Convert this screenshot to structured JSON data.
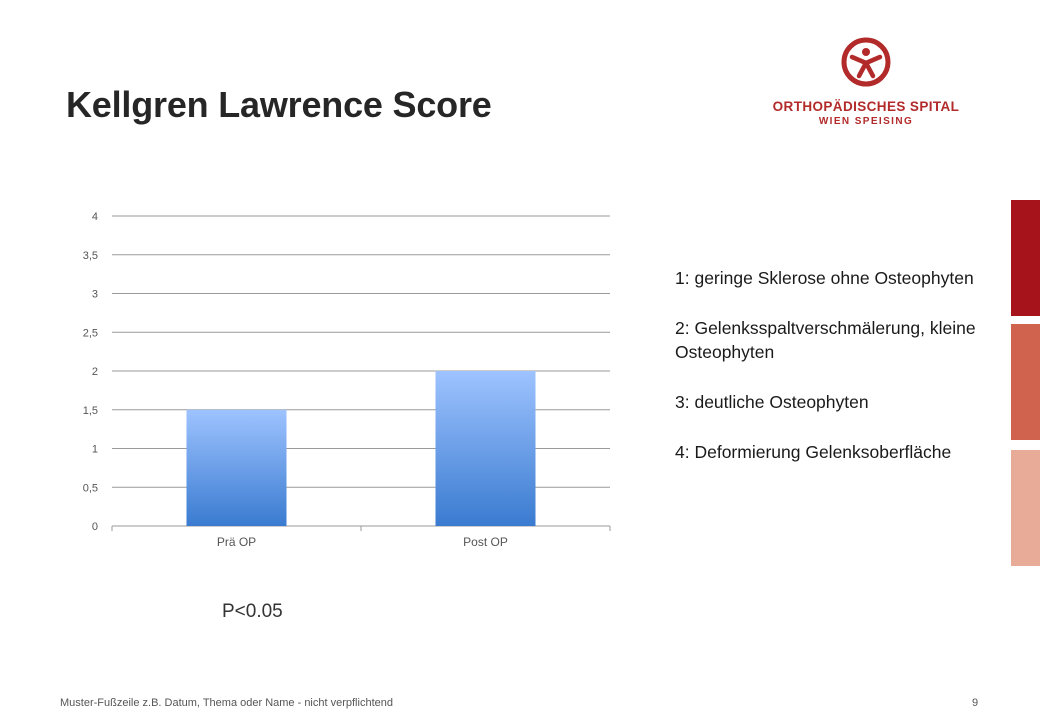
{
  "slide": {
    "title": "Kellgren Lawrence Score",
    "footer": "Muster-Fußzeile z.B. Datum, Thema oder Name - nicht verpflichtend",
    "page_number": "9",
    "p_value": "P<0.05"
  },
  "logo": {
    "name": "ORTHOPÄDISCHES SPITAL",
    "subtitle": "WIEN SPEISING",
    "color": "#b22a2a"
  },
  "legend": [
    {
      "text": "1: geringe Sklerose ohne Osteophyten"
    },
    {
      "text": "2: Gelenksspaltverschmälerung, kleine Osteophyten"
    },
    {
      "text": "3: deutliche Osteophyten"
    },
    {
      "text": "4: Deformierung Gelenksoberfläche"
    }
  ],
  "side_stripes": [
    "#a6131a",
    "#d0634d",
    "#e8ab98"
  ],
  "chart_data": {
    "type": "bar",
    "categories": [
      "Prä OP",
      "Post OP"
    ],
    "values": [
      1.5,
      2.0
    ],
    "ylim": [
      0,
      4
    ],
    "yticks": [
      "0",
      "0,5",
      "1",
      "1,5",
      "2",
      "2,5",
      "3",
      "3,5",
      "4"
    ],
    "grid": true,
    "bar_color_top": "#9ec3ff",
    "bar_color_bottom": "#3a7bd0"
  }
}
